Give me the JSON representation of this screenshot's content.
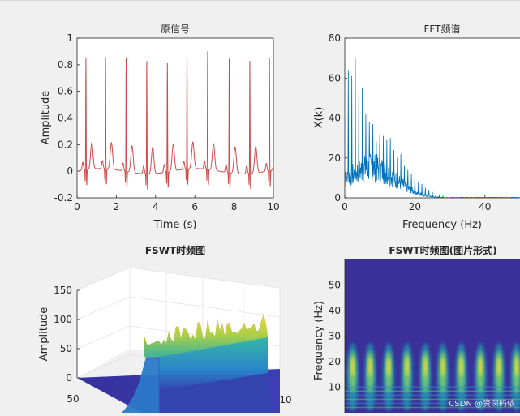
{
  "watermark": "CSDN @资深码侬",
  "colors": {
    "background": "#f0f0f0",
    "axes_bg": "#ffffff",
    "axis": "#262626",
    "signal": "#d14a4a",
    "fft": "#0072bd",
    "grid": "#e6e6e6"
  },
  "chart_data": [
    {
      "id": "signal",
      "type": "line",
      "title": "原信号",
      "xlabel": "Time (s)",
      "ylabel": "Amplitude",
      "xlim": [
        0,
        10
      ],
      "ylim": [
        -0.2,
        1
      ],
      "xticks": [
        0,
        2,
        4,
        6,
        8,
        10
      ],
      "xticklabels": [
        "0",
        "2",
        "4",
        "6",
        "8",
        "10"
      ],
      "yticks": [
        -0.2,
        0,
        0.2,
        0.4,
        0.6,
        0.8,
        1
      ],
      "yticklabels": [
        "-0.2",
        "0",
        "0.2",
        "0.4",
        "0.6",
        "0.8",
        "1"
      ],
      "beats": [
        {
          "t": 0.45,
          "r": 0.84
        },
        {
          "t": 1.45,
          "r": 0.84
        },
        {
          "t": 2.5,
          "r": 0.86
        },
        {
          "t": 3.55,
          "r": 0.85
        },
        {
          "t": 4.6,
          "r": 0.82
        },
        {
          "t": 5.6,
          "r": 0.87
        },
        {
          "t": 6.65,
          "r": 0.89
        },
        {
          "t": 7.75,
          "r": 0.86
        },
        {
          "t": 8.8,
          "r": 0.85
        },
        {
          "t": 9.8,
          "r": 0.85
        }
      ]
    },
    {
      "id": "fft",
      "type": "line",
      "title": "FFT频谱",
      "xlabel": "Frequency (Hz)",
      "ylabel": "X(k)",
      "xlim": [
        0,
        50
      ],
      "ylim": [
        0,
        80
      ],
      "xticks": [
        0,
        20,
        40
      ],
      "xticklabels": [
        "0",
        "20",
        "40"
      ],
      "yticks": [
        0,
        20,
        40,
        60,
        80
      ],
      "yticklabels": [
        "0",
        "20",
        "40",
        "60",
        "80"
      ],
      "peaks": [
        {
          "f": 1.0,
          "a": 64
        },
        {
          "f": 2.0,
          "a": 61
        },
        {
          "f": 3.0,
          "a": 70
        },
        {
          "f": 4.0,
          "a": 52
        },
        {
          "f": 5.0,
          "a": 55
        },
        {
          "f": 6.0,
          "a": 42
        },
        {
          "f": 7.0,
          "a": 38
        },
        {
          "f": 8.0,
          "a": 37
        },
        {
          "f": 9.0,
          "a": 28
        },
        {
          "f": 10.0,
          "a": 32
        },
        {
          "f": 11.0,
          "a": 31
        },
        {
          "f": 12.0,
          "a": 29
        },
        {
          "f": 13.0,
          "a": 30
        },
        {
          "f": 14.0,
          "a": 24
        },
        {
          "f": 15.0,
          "a": 20
        },
        {
          "f": 16.0,
          "a": 22
        },
        {
          "f": 17.0,
          "a": 16
        },
        {
          "f": 18.0,
          "a": 14
        },
        {
          "f": 19.0,
          "a": 12
        },
        {
          "f": 20.0,
          "a": 11
        },
        {
          "f": 21.0,
          "a": 8
        },
        {
          "f": 22.0,
          "a": 7
        },
        {
          "f": 23.0,
          "a": 5
        },
        {
          "f": 24.0,
          "a": 4
        },
        {
          "f": 25.0,
          "a": 3
        },
        {
          "f": 26.0,
          "a": 2
        },
        {
          "f": 27.0,
          "a": 1.5
        },
        {
          "f": 28.0,
          "a": 1
        }
      ]
    },
    {
      "id": "surface3d",
      "type": "surface",
      "title": "FSWT时频图",
      "zlabel": "Amplitude",
      "zlim": [
        0,
        150
      ],
      "zticks": [
        0,
        50,
        100,
        150
      ],
      "zticklabels": [
        "0",
        "50",
        "100",
        "150"
      ],
      "freq_tick_labels": [
        "50"
      ],
      "time_tick_labels": [
        "10"
      ]
    },
    {
      "id": "heatmap",
      "type": "heatmap",
      "title": "FSWT时频图(图片形式)",
      "ylabel": "Frequency (Hz)",
      "ylim": [
        0,
        60
      ],
      "yticks": [
        10,
        20,
        30,
        40,
        50
      ],
      "yticklabels": [
        "10",
        "20",
        "30",
        "40",
        "50"
      ],
      "beat_times": [
        0.45,
        1.45,
        2.5,
        3.55,
        4.6,
        5.6,
        6.65,
        7.75,
        8.8,
        9.8
      ],
      "xlim": [
        0,
        10
      ]
    }
  ]
}
